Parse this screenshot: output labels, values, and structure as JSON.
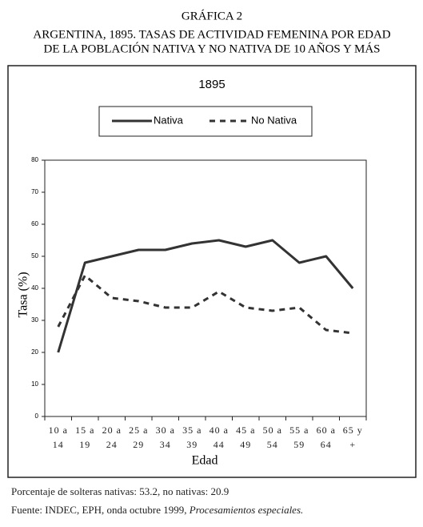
{
  "header": {
    "label": "GRÁFICA 2",
    "title_lines": [
      "ARGENTINA, 1895. TASAS DE ACTIVIDAD FEMENINA POR EDAD",
      "DE LA POBLACIÓN NATIVA Y NO NATIVA DE 10 AÑOS Y MÁS"
    ]
  },
  "chart_data": {
    "type": "line",
    "title": "1895",
    "x_label": "Edad",
    "y_label": "Tasa (%)",
    "categories": [
      "10 a 14",
      "15 a 19",
      "20 a 24",
      "25 a 29",
      "30 a 34",
      "35 a 39",
      "40 a 44",
      "45 a 49",
      "50 a 54",
      "55 a 59",
      "60 a 64",
      "65 y +"
    ],
    "series": [
      {
        "name": "Nativa",
        "color": "#333333",
        "dash": false,
        "values": [
          20,
          48,
          50,
          52,
          52,
          54,
          55,
          53,
          55,
          48,
          50,
          40
        ]
      },
      {
        "name": "No Nativa",
        "color": "#333333",
        "dash": true,
        "values": [
          28,
          44,
          37,
          36,
          34,
          34,
          39,
          34,
          33,
          34,
          27,
          26
        ]
      }
    ],
    "ylim": [
      0,
      80
    ],
    "yticks": [
      0,
      10,
      20,
      30,
      40,
      50,
      60,
      70,
      80
    ],
    "legend": "top"
  },
  "notes": [
    "Porcentaje de solteras nativas: 53.2,  no nativas: 20.9"
  ],
  "source": {
    "text": "Fuente: INDEC, EPH, onda octubre 1999, ",
    "italic": "Procesamientos especiales."
  }
}
